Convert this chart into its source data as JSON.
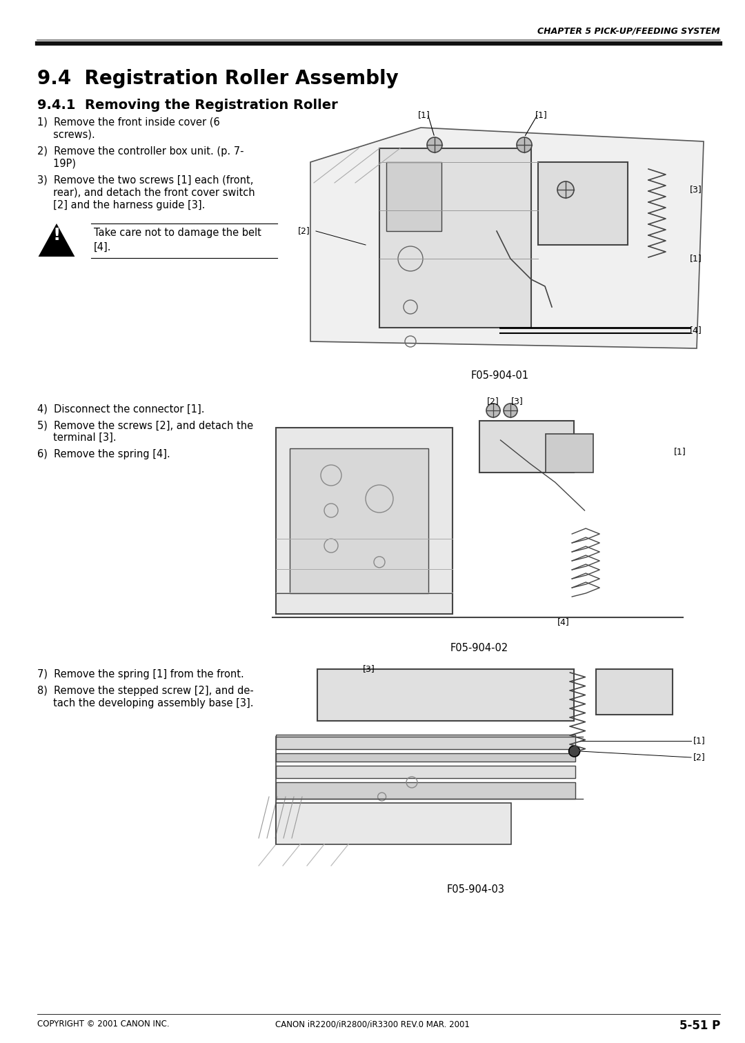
{
  "page_width": 10.8,
  "page_height": 15.12,
  "dpi": 100,
  "bg_color": "#ffffff",
  "header_text": "CHAPTER 5 PICK-UP/FEEDING SYSTEM",
  "title_main": "9.4  Registration Roller Assembly",
  "title_sub": "9.4.1  Removing the Registration Roller",
  "step1_lines": [
    "1)  Remove the front inside cover (6",
    "     screws)."
  ],
  "step2_lines": [
    "2)  Remove the controller box unit. (p. 7-",
    "     19P)"
  ],
  "step3_lines": [
    "3)  Remove the two screws [1] each (front,",
    "     rear), and detach the front cover switch",
    "     [2] and the harness guide [3]."
  ],
  "warning_text": "Take care not to damage the belt\n[4].",
  "step4_lines": [
    "4)  Disconnect the connector [1]."
  ],
  "step5_lines": [
    "5)  Remove the screws [2], and detach the",
    "     terminal [3]."
  ],
  "step6_lines": [
    "6)  Remove the spring [4]."
  ],
  "step7_lines": [
    "7)  Remove the spring [1] from the front."
  ],
  "step8_lines": [
    "8)  Remove the stepped screw [2], and de-",
    "     tach the developing assembly base [3]."
  ],
  "fig_label1": "F05-904-01",
  "fig_label2": "F05-904-02",
  "fig_label3": "F05-904-03",
  "footer_left": "COPYRIGHT © 2001 CANON INC.",
  "footer_center": "CANON iR2200/iR2800/iR3300 REV.0 MAR. 2001",
  "footer_right": "5-51 P",
  "text_color": "#000000",
  "gray_light": "#c8c8c8",
  "gray_mid": "#888888"
}
